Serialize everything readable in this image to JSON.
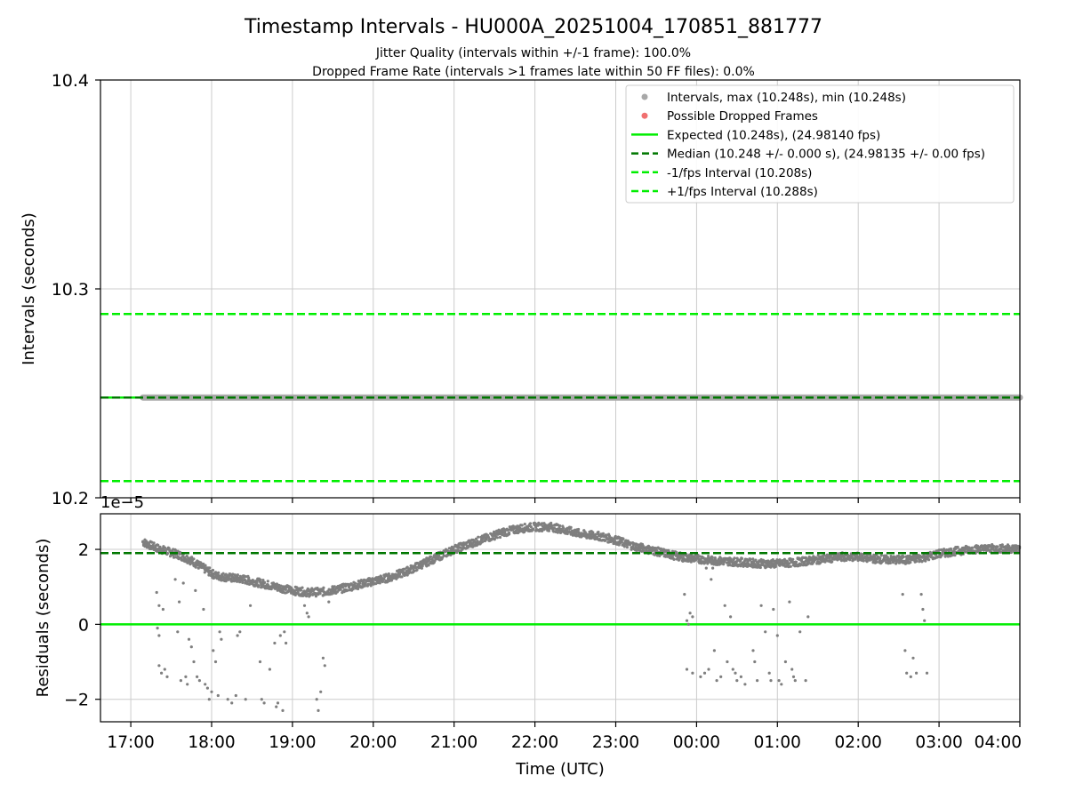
{
  "figure": {
    "title": "Timestamp Intervals - HU000A_20251004_170851_881777",
    "subtitle_1": "Jitter Quality (intervals within +/-1 frame): 100.0%",
    "subtitle_2": "Dropped Frame Rate (intervals >1 frames late within 50 FF files): 0.0%"
  },
  "colors": {
    "intervals": "#a8a8a8",
    "dropped": "#f07070",
    "expected": "#00ee00",
    "median": "#007700",
    "fps_bounds": "#00ee00",
    "residual_points": "#7f7f7f",
    "grid": "#cccccc"
  },
  "chart_data": [
    {
      "type": "line",
      "name": "intervals-panel",
      "ylabel": "Intervals (seconds)",
      "ylim": [
        10.2,
        10.4
      ],
      "yticks": [
        "10.2",
        "10.3",
        "10.4"
      ],
      "ytick_values": [
        10.2,
        10.3,
        10.4
      ],
      "xlim_hours": [
        16.625,
        28.0
      ],
      "grid": true,
      "legend_position": "top-right",
      "legend": [
        {
          "label": "Intervals, max (10.248s), min (10.248s)",
          "kind": "dot",
          "color": "#a8a8a8"
        },
        {
          "label": "Possible Dropped Frames",
          "kind": "dot",
          "color": "#f07070"
        },
        {
          "label": "Expected (10.248s), (24.98140 fps)",
          "kind": "solid",
          "color": "#00ee00"
        },
        {
          "label": "Median (10.248 +/- 0.000 s), (24.98135 +/- 0.00 fps)",
          "kind": "dashed",
          "color": "#007700"
        },
        {
          "label": "-1/fps Interval (10.208s)",
          "kind": "dashed",
          "color": "#00ee00"
        },
        {
          "label": "+1/fps Interval (10.288s)",
          "kind": "dashed",
          "color": "#00ee00"
        }
      ],
      "expected": 10.248,
      "median": 10.248,
      "minus_fps": 10.208,
      "plus_fps": 10.288,
      "intervals_x_range_hours": [
        17.15,
        28.0
      ],
      "intervals_value": 10.248
    },
    {
      "type": "scatter",
      "name": "residuals-panel",
      "xlabel": "Time (UTC)",
      "ylabel": "Residuals (seconds)",
      "offset_text": "1e−5",
      "ylim": [
        -2.6,
        2.95
      ],
      "yticks": [
        "−2",
        "0",
        "2"
      ],
      "ytick_values": [
        -2,
        0,
        2
      ],
      "xticks": [
        "17:00",
        "18:00",
        "19:00",
        "20:00",
        "21:00",
        "22:00",
        "23:00",
        "00:00",
        "01:00",
        "02:00",
        "03:00",
        "04:00"
      ],
      "xtick_hours": [
        17,
        18,
        19,
        20,
        21,
        22,
        23,
        24,
        25,
        26,
        27,
        28
      ],
      "xlim_hours": [
        16.625,
        28.0
      ],
      "grid": true,
      "expected_residual": 0,
      "median_residual": 1.9,
      "main_band": [
        [
          17.15,
          2.2
        ],
        [
          17.3,
          2.05
        ],
        [
          17.45,
          1.95
        ],
        [
          17.6,
          1.85
        ],
        [
          17.75,
          1.7
        ],
        [
          17.9,
          1.5
        ],
        [
          18.05,
          1.3
        ],
        [
          18.2,
          1.25
        ],
        [
          18.4,
          1.2
        ],
        [
          18.6,
          1.1
        ],
        [
          18.8,
          1.0
        ],
        [
          19.0,
          0.9
        ],
        [
          19.2,
          0.85
        ],
        [
          19.4,
          0.87
        ],
        [
          19.6,
          0.95
        ],
        [
          19.8,
          1.05
        ],
        [
          20.0,
          1.15
        ],
        [
          20.2,
          1.25
        ],
        [
          20.4,
          1.4
        ],
        [
          20.6,
          1.6
        ],
        [
          20.8,
          1.8
        ],
        [
          21.0,
          2.0
        ],
        [
          21.2,
          2.15
        ],
        [
          21.4,
          2.3
        ],
        [
          21.6,
          2.45
        ],
        [
          21.8,
          2.55
        ],
        [
          22.0,
          2.6
        ],
        [
          22.2,
          2.6
        ],
        [
          22.4,
          2.5
        ],
        [
          22.6,
          2.4
        ],
        [
          22.8,
          2.35
        ],
        [
          23.0,
          2.25
        ],
        [
          23.2,
          2.1
        ],
        [
          23.4,
          2.0
        ],
        [
          23.6,
          1.9
        ],
        [
          23.8,
          1.8
        ],
        [
          24.0,
          1.75
        ],
        [
          24.2,
          1.7
        ],
        [
          24.4,
          1.68
        ],
        [
          24.6,
          1.65
        ],
        [
          24.8,
          1.62
        ],
        [
          25.0,
          1.62
        ],
        [
          25.2,
          1.65
        ],
        [
          25.4,
          1.7
        ],
        [
          25.6,
          1.75
        ],
        [
          25.8,
          1.8
        ],
        [
          26.0,
          1.8
        ],
        [
          26.2,
          1.75
        ],
        [
          26.4,
          1.72
        ],
        [
          26.6,
          1.72
        ],
        [
          26.8,
          1.78
        ],
        [
          27.0,
          1.88
        ],
        [
          27.2,
          1.95
        ],
        [
          27.4,
          2.0
        ],
        [
          27.6,
          2.02
        ],
        [
          27.8,
          2.02
        ],
        [
          28.0,
          2.02
        ]
      ],
      "outliers": [
        [
          17.32,
          0.85
        ],
        [
          17.35,
          0.5
        ],
        [
          17.4,
          0.4
        ],
        [
          17.33,
          -0.1
        ],
        [
          17.35,
          -0.3
        ],
        [
          17.35,
          -1.1
        ],
        [
          17.38,
          -1.3
        ],
        [
          17.42,
          -1.2
        ],
        [
          17.45,
          -1.4
        ],
        [
          17.55,
          1.2
        ],
        [
          17.6,
          0.6
        ],
        [
          17.65,
          1.1
        ],
        [
          17.58,
          -0.2
        ],
        [
          17.62,
          -1.5
        ],
        [
          17.68,
          -1.4
        ],
        [
          17.7,
          -1.6
        ],
        [
          17.72,
          -0.4
        ],
        [
          17.75,
          -0.6
        ],
        [
          17.78,
          -1.0
        ],
        [
          17.8,
          0.9
        ],
        [
          17.82,
          -1.4
        ],
        [
          17.85,
          -1.5
        ],
        [
          17.9,
          0.4
        ],
        [
          17.92,
          -1.6
        ],
        [
          17.95,
          -1.7
        ],
        [
          17.97,
          -2.0
        ],
        [
          18.0,
          -1.8
        ],
        [
          18.02,
          -0.7
        ],
        [
          18.05,
          -1.0
        ],
        [
          18.08,
          -1.9
        ],
        [
          18.1,
          -0.2
        ],
        [
          18.12,
          -0.4
        ],
        [
          18.2,
          -2.0
        ],
        [
          18.25,
          -2.1
        ],
        [
          18.3,
          -1.9
        ],
        [
          18.32,
          -0.3
        ],
        [
          18.35,
          -0.2
        ],
        [
          18.42,
          -2.0
        ],
        [
          18.48,
          0.5
        ],
        [
          18.6,
          -1.0
        ],
        [
          18.62,
          -2.0
        ],
        [
          18.65,
          -2.1
        ],
        [
          18.72,
          -1.2
        ],
        [
          18.78,
          -0.5
        ],
        [
          18.8,
          -2.2
        ],
        [
          18.82,
          -2.1
        ],
        [
          18.85,
          -0.3
        ],
        [
          18.88,
          -2.3
        ],
        [
          18.9,
          -0.2
        ],
        [
          18.92,
          -0.5
        ],
        [
          19.15,
          0.5
        ],
        [
          19.18,
          0.3
        ],
        [
          19.2,
          0.2
        ],
        [
          19.3,
          -2.0
        ],
        [
          19.32,
          -2.3
        ],
        [
          19.35,
          -1.8
        ],
        [
          19.38,
          -0.9
        ],
        [
          19.4,
          -1.1
        ],
        [
          19.45,
          0.6
        ],
        [
          23.85,
          0.8
        ],
        [
          23.88,
          0.1
        ],
        [
          23.9,
          0.0
        ],
        [
          23.92,
          0.3
        ],
        [
          23.95,
          0.2
        ],
        [
          23.88,
          -1.2
        ],
        [
          23.95,
          -1.3
        ],
        [
          24.05,
          -1.4
        ],
        [
          24.1,
          -1.3
        ],
        [
          24.15,
          -1.2
        ],
        [
          24.12,
          1.5
        ],
        [
          24.18,
          1.2
        ],
        [
          24.2,
          1.5
        ],
        [
          24.22,
          -0.7
        ],
        [
          24.25,
          -1.5
        ],
        [
          24.3,
          -1.4
        ],
        [
          24.35,
          0.5
        ],
        [
          24.38,
          -1.0
        ],
        [
          24.42,
          0.2
        ],
        [
          24.45,
          -1.2
        ],
        [
          24.48,
          -1.3
        ],
        [
          24.5,
          -1.5
        ],
        [
          24.55,
          -1.4
        ],
        [
          24.6,
          -1.6
        ],
        [
          24.7,
          -0.7
        ],
        [
          24.72,
          -1.0
        ],
        [
          24.75,
          -1.5
        ],
        [
          24.8,
          0.5
        ],
        [
          24.85,
          -0.2
        ],
        [
          24.9,
          -1.3
        ],
        [
          24.92,
          -1.5
        ],
        [
          24.95,
          0.4
        ],
        [
          25.0,
          -0.3
        ],
        [
          25.02,
          -1.5
        ],
        [
          25.05,
          -1.6
        ],
        [
          25.1,
          -1.0
        ],
        [
          25.15,
          0.6
        ],
        [
          25.18,
          -1.2
        ],
        [
          25.2,
          -1.4
        ],
        [
          25.22,
          -1.5
        ],
        [
          25.28,
          -0.2
        ],
        [
          25.35,
          -1.5
        ],
        [
          25.38,
          0.2
        ],
        [
          26.55,
          0.8
        ],
        [
          26.58,
          -0.7
        ],
        [
          26.6,
          -1.3
        ],
        [
          26.65,
          -1.4
        ],
        [
          26.68,
          -0.9
        ],
        [
          26.72,
          -1.3
        ],
        [
          26.78,
          0.8
        ],
        [
          26.8,
          0.4
        ],
        [
          26.82,
          0.1
        ],
        [
          26.85,
          -1.3
        ]
      ]
    }
  ]
}
